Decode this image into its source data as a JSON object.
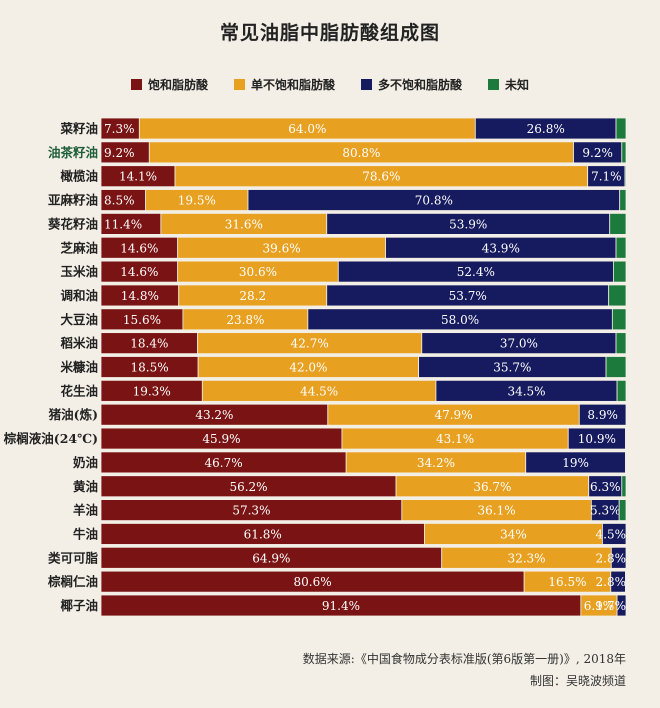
{
  "chart_data": {
    "type": "bar",
    "orientation": "horizontal",
    "stacked": true,
    "title": "常见油脂中脂肪酸组成图",
    "xlim": [
      0,
      100
    ],
    "legend_position": "top",
    "categories": [
      "菜籽油",
      "油茶籽油",
      "橄榄油",
      "亚麻籽油",
      "葵花籽油",
      "芝麻油",
      "玉米油",
      "调和油",
      "大豆油",
      "稻米油",
      "米糠油",
      "花生油",
      "猪油(炼)",
      "棕榈液油(24℃)",
      "奶油",
      "黄油",
      "羊油",
      "牛油",
      "类可可脂",
      "棕榈仁油",
      "椰子油"
    ],
    "series": [
      {
        "name": "饱和脂肪酸",
        "color": "#7a1414",
        "values": [
          7.3,
          9.2,
          14.1,
          8.5,
          11.4,
          14.6,
          14.6,
          14.8,
          15.6,
          18.4,
          18.5,
          19.3,
          43.2,
          45.9,
          46.7,
          56.2,
          57.3,
          61.8,
          64.9,
          80.6,
          91.4
        ],
        "labels": [
          "7.3%",
          "9.2%",
          "14.1%",
          "8.5%",
          "11.4%",
          "14.6%",
          "14.6%",
          "14.8%",
          "15.6%",
          "18.4%",
          "18.5%",
          "19.3%",
          "43.2%",
          "45.9%",
          "46.7%",
          "56.2%",
          "57.3%",
          "61.8%",
          "64.9%",
          "80.6%",
          "91.4%"
        ]
      },
      {
        "name": "单不饱和脂肪酸",
        "color": "#e8a020",
        "values": [
          64.0,
          80.8,
          78.6,
          19.5,
          31.6,
          39.6,
          30.6,
          28.2,
          23.8,
          42.7,
          42.0,
          44.5,
          47.9,
          43.1,
          34.2,
          36.7,
          36.1,
          34,
          32.3,
          16.5,
          6.9
        ],
        "labels": [
          "64.0%",
          "80.8%",
          "78.6%",
          "19.5%",
          "31.6%",
          "39.6%",
          "30.6%",
          "28.2",
          "23.8%",
          "42.7%",
          "42.0%",
          "44.5%",
          "47.9%",
          "43.1%",
          "34.2%",
          "36.7%",
          "36.1%",
          "34%",
          "32.3%",
          "16.5%",
          "6.9%"
        ]
      },
      {
        "name": "多不饱和脂肪酸",
        "color": "#161a5e",
        "values": [
          26.8,
          9.2,
          7.1,
          70.8,
          53.9,
          43.9,
          52.4,
          53.7,
          58.0,
          37.0,
          35.7,
          34.5,
          8.9,
          10.9,
          19,
          6.3,
          5.3,
          4.5,
          2.8,
          2.8,
          1.7
        ],
        "labels": [
          "26.8%",
          "9.2%",
          "7.1%",
          "70.8%",
          "53.9%",
          "43.9%",
          "52.4%",
          "53.7%",
          "58.0%",
          "37.0%",
          "35.7%",
          "34.5%",
          "8.9%",
          "10.9%",
          "19%",
          "6.3%",
          "5.3%",
          "4.5%",
          "2.8%",
          "2.8%",
          "1.7%"
        ]
      },
      {
        "name": "未知",
        "color": "#1c7a3c",
        "values": [
          1.9,
          0.8,
          0.2,
          1.2,
          3.1,
          1.9,
          2.4,
          3.3,
          2.6,
          1.9,
          3.8,
          1.7,
          0,
          0.1,
          0.1,
          0.8,
          1.3,
          0,
          0,
          0.1,
          0
        ],
        "labels": [
          "",
          "",
          "",
          "",
          "",
          "",
          "",
          "",
          "",
          "",
          "",
          "",
          "",
          "",
          "",
          "",
          "",
          "",
          "",
          "",
          ""
        ]
      }
    ],
    "highlight_category": "油茶籽油",
    "highlight_color": "#1f5e3a"
  },
  "footer": {
    "source": "数据来源:《中国食物成分表标准版(第6版第一册)》, 2018年",
    "credit": "制图：吴晓波频道"
  }
}
